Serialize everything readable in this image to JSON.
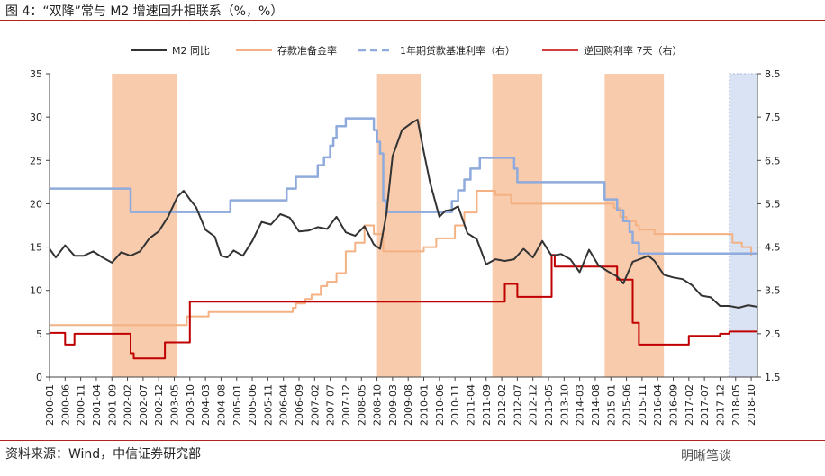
{
  "header": {
    "title": "图 4：“双降”常与 M2 增速回升相联系（%，%）"
  },
  "footer": {
    "source": "资料来源：Wind，中信证券研究部",
    "watermark": "明晰笔谈"
  },
  "colors": {
    "m2": "#333333",
    "rrr": "#f4b183",
    "loan": "#8faadc",
    "repo": "#c00000",
    "band": "#f8cbad",
    "band_last": "#dae3f3",
    "rule": "#b22222"
  },
  "chart_data": {
    "type": "line",
    "title": "",
    "legend_position": "top",
    "x_tick_labels": [
      "2000-01",
      "2000-06",
      "2000-11",
      "2001-04",
      "2001-09",
      "2002-02",
      "2002-07",
      "2002-12",
      "2003-05",
      "2003-10",
      "2004-03",
      "2004-08",
      "2005-01",
      "2005-06",
      "2005-11",
      "2006-04",
      "2006-09",
      "2007-02",
      "2007-07",
      "2007-12",
      "2008-05",
      "2008-10",
      "2009-03",
      "2009-08",
      "2010-01",
      "2010-06",
      "2010-11",
      "2011-04",
      "2011-09",
      "2012-02",
      "2012-07",
      "2012-12",
      "2013-05",
      "2013-10",
      "2014-03",
      "2014-08",
      "2015-01",
      "2015-06",
      "2015-11",
      "2016-04",
      "2016-09",
      "2017-02",
      "2017-07",
      "2017-12",
      "2018-05",
      "2018-10"
    ],
    "y_left": {
      "min": 0,
      "max": 35,
      "ticks": [
        "0",
        "5",
        "10",
        "15",
        "20",
        "25",
        "30",
        "35"
      ]
    },
    "y_right": {
      "min": 1.5,
      "max": 8.5,
      "ticks": [
        "1.5",
        "2.5",
        "3.5",
        "4.5",
        "5.5",
        "6.5",
        "7.5",
        "8.5"
      ]
    },
    "shaded_periods": [
      {
        "start": "2001-09",
        "end": "2003-06"
      },
      {
        "start": "2008-10",
        "end": "2009-12"
      },
      {
        "start": "2011-11",
        "end": "2013-03"
      },
      {
        "start": "2014-11",
        "end": "2016-06"
      },
      {
        "start": "2018-03",
        "end": "2018-12"
      }
    ],
    "series": [
      {
        "name": "M2 同比",
        "axis": "left",
        "points": [
          [
            "2000-01",
            14.8
          ],
          [
            "2000-03",
            13.8
          ],
          [
            "2000-06",
            15.2
          ],
          [
            "2000-09",
            14.0
          ],
          [
            "2000-12",
            14.0
          ],
          [
            "2001-03",
            14.5
          ],
          [
            "2001-06",
            13.8
          ],
          [
            "2001-09",
            13.2
          ],
          [
            "2001-12",
            14.4
          ],
          [
            "2002-03",
            14.0
          ],
          [
            "2002-06",
            14.5
          ],
          [
            "2002-09",
            16.0
          ],
          [
            "2002-12",
            16.8
          ],
          [
            "2003-03",
            18.5
          ],
          [
            "2003-06",
            20.8
          ],
          [
            "2003-08",
            21.5
          ],
          [
            "2003-10",
            20.5
          ],
          [
            "2003-12",
            19.6
          ],
          [
            "2004-03",
            17.0
          ],
          [
            "2004-06",
            16.2
          ],
          [
            "2004-08",
            14.0
          ],
          [
            "2004-10",
            13.8
          ],
          [
            "2004-12",
            14.6
          ],
          [
            "2005-03",
            14.0
          ],
          [
            "2005-06",
            15.7
          ],
          [
            "2005-09",
            17.9
          ],
          [
            "2005-12",
            17.6
          ],
          [
            "2006-03",
            18.8
          ],
          [
            "2006-06",
            18.4
          ],
          [
            "2006-09",
            16.8
          ],
          [
            "2006-12",
            16.9
          ],
          [
            "2007-03",
            17.3
          ],
          [
            "2007-06",
            17.1
          ],
          [
            "2007-09",
            18.5
          ],
          [
            "2007-12",
            16.7
          ],
          [
            "2008-03",
            16.3
          ],
          [
            "2008-06",
            17.4
          ],
          [
            "2008-09",
            15.3
          ],
          [
            "2008-11",
            14.8
          ],
          [
            "2009-01",
            18.8
          ],
          [
            "2009-03",
            25.5
          ],
          [
            "2009-06",
            28.5
          ],
          [
            "2009-09",
            29.3
          ],
          [
            "2009-11",
            29.7
          ],
          [
            "2010-01",
            26.0
          ],
          [
            "2010-03",
            22.5
          ],
          [
            "2010-06",
            18.5
          ],
          [
            "2010-08",
            19.2
          ],
          [
            "2010-10",
            19.3
          ],
          [
            "2010-12",
            19.7
          ],
          [
            "2011-03",
            16.6
          ],
          [
            "2011-06",
            15.9
          ],
          [
            "2011-09",
            13.0
          ],
          [
            "2011-12",
            13.6
          ],
          [
            "2012-03",
            13.4
          ],
          [
            "2012-06",
            13.6
          ],
          [
            "2012-09",
            14.8
          ],
          [
            "2012-12",
            13.8
          ],
          [
            "2013-03",
            15.7
          ],
          [
            "2013-06",
            14.0
          ],
          [
            "2013-09",
            14.2
          ],
          [
            "2013-12",
            13.6
          ],
          [
            "2014-03",
            12.1
          ],
          [
            "2014-06",
            14.7
          ],
          [
            "2014-09",
            12.9
          ],
          [
            "2014-12",
            12.2
          ],
          [
            "2015-03",
            11.6
          ],
          [
            "2015-05",
            10.8
          ],
          [
            "2015-08",
            13.3
          ],
          [
            "2015-11",
            13.7
          ],
          [
            "2016-01",
            14.0
          ],
          [
            "2016-03",
            13.4
          ],
          [
            "2016-06",
            11.8
          ],
          [
            "2016-09",
            11.5
          ],
          [
            "2016-12",
            11.3
          ],
          [
            "2017-03",
            10.6
          ],
          [
            "2017-06",
            9.4
          ],
          [
            "2017-09",
            9.2
          ],
          [
            "2017-12",
            8.2
          ],
          [
            "2018-03",
            8.2
          ],
          [
            "2018-06",
            8.0
          ],
          [
            "2018-09",
            8.3
          ],
          [
            "2018-12",
            8.1
          ]
        ]
      },
      {
        "name": "存款准备金率",
        "axis": "left",
        "points": [
          [
            "2000-01",
            6.0
          ],
          [
            "2003-08",
            6.0
          ],
          [
            "2003-09",
            7.0
          ],
          [
            "2004-04",
            7.5
          ],
          [
            "2006-07",
            8.0
          ],
          [
            "2006-08",
            8.5
          ],
          [
            "2006-11",
            9.0
          ],
          [
            "2007-01",
            9.5
          ],
          [
            "2007-04",
            10.5
          ],
          [
            "2007-06",
            11.0
          ],
          [
            "2007-09",
            12.0
          ],
          [
            "2007-12",
            14.5
          ],
          [
            "2008-03",
            15.5
          ],
          [
            "2008-06",
            17.5
          ],
          [
            "2008-09",
            16.5
          ],
          [
            "2008-12",
            14.5
          ],
          [
            "2010-01",
            15.0
          ],
          [
            "2010-05",
            16.0
          ],
          [
            "2010-11",
            17.5
          ],
          [
            "2011-02",
            19.0
          ],
          [
            "2011-06",
            21.5
          ],
          [
            "2011-12",
            21.0
          ],
          [
            "2012-05",
            20.0
          ],
          [
            "2015-02",
            19.5
          ],
          [
            "2015-04",
            18.5
          ],
          [
            "2015-06",
            18.0
          ],
          [
            "2015-09",
            17.5
          ],
          [
            "2015-10",
            17.0
          ],
          [
            "2016-03",
            16.5
          ],
          [
            "2018-04",
            15.5
          ],
          [
            "2018-07",
            15.0
          ],
          [
            "2018-10",
            14.0
          ]
        ]
      },
      {
        "name": "1年期贷款基准利率（右）",
        "axis": "right",
        "points": [
          [
            "2000-01",
            5.85
          ],
          [
            "2002-02",
            5.85
          ],
          [
            "2002-03",
            5.31
          ],
          [
            "2004-10",
            5.31
          ],
          [
            "2004-11",
            5.58
          ],
          [
            "2006-04",
            5.58
          ],
          [
            "2006-05",
            5.85
          ],
          [
            "2006-08",
            6.12
          ],
          [
            "2007-03",
            6.39
          ],
          [
            "2007-05",
            6.57
          ],
          [
            "2007-07",
            6.84
          ],
          [
            "2007-08",
            7.02
          ],
          [
            "2007-09",
            7.29
          ],
          [
            "2007-12",
            7.47
          ],
          [
            "2008-09",
            7.2
          ],
          [
            "2008-10",
            6.93
          ],
          [
            "2008-11",
            6.66
          ],
          [
            "2008-12",
            5.58
          ],
          [
            "2009-01",
            5.31
          ],
          [
            "2010-10",
            5.56
          ],
          [
            "2010-12",
            5.81
          ],
          [
            "2011-02",
            6.06
          ],
          [
            "2011-04",
            6.31
          ],
          [
            "2011-07",
            6.56
          ],
          [
            "2012-06",
            6.31
          ],
          [
            "2012-07",
            6.0
          ],
          [
            "2014-11",
            5.6
          ],
          [
            "2015-03",
            5.35
          ],
          [
            "2015-05",
            5.1
          ],
          [
            "2015-07",
            4.85
          ],
          [
            "2015-08",
            4.6
          ],
          [
            "2015-10",
            4.35
          ],
          [
            "2018-12",
            4.35
          ]
        ]
      },
      {
        "name": "逆回购利率 7天（右）",
        "axis": "right",
        "points": [
          [
            "2000-01",
            2.52
          ],
          [
            "2000-06",
            2.25
          ],
          [
            "2000-09",
            2.5
          ],
          [
            "2002-02",
            2.5
          ],
          [
            "2002-03",
            2.05
          ],
          [
            "2002-04",
            1.93
          ],
          [
            "2003-01",
            1.93
          ],
          [
            "2003-02",
            2.3
          ],
          [
            "2003-09",
            2.3
          ],
          [
            "2003-10",
            3.24
          ],
          [
            "2011-11",
            3.24
          ],
          [
            "2012-03",
            3.65
          ],
          [
            "2012-07",
            3.35
          ],
          [
            "2013-05",
            3.35
          ],
          [
            "2013-06",
            4.32
          ],
          [
            "2013-07",
            4.05
          ],
          [
            "2015-02",
            4.05
          ],
          [
            "2015-03",
            3.75
          ],
          [
            "2015-08",
            2.75
          ],
          [
            "2015-10",
            2.25
          ],
          [
            "2016-12",
            2.25
          ],
          [
            "2017-02",
            2.45
          ],
          [
            "2017-12",
            2.5
          ],
          [
            "2018-03",
            2.55
          ],
          [
            "2018-12",
            2.55
          ]
        ]
      }
    ]
  }
}
